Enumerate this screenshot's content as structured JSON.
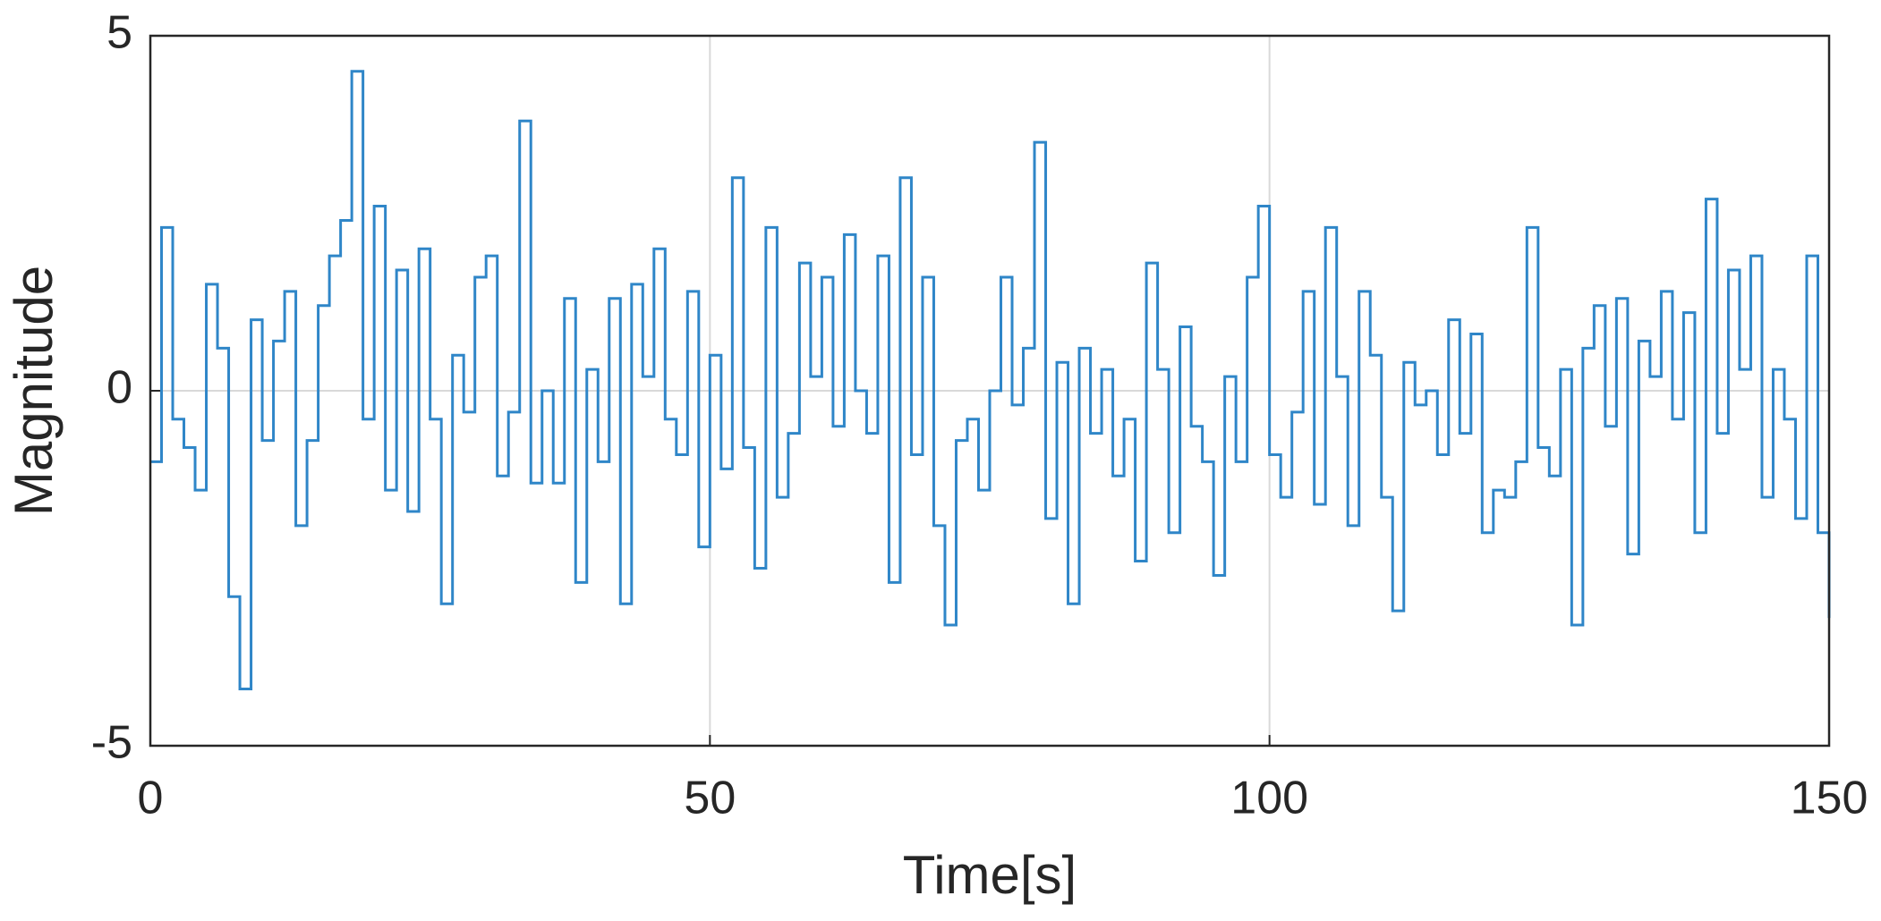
{
  "chart_data": {
    "type": "line",
    "drawstyle": "steps-post",
    "xlabel": "Time[s]",
    "ylabel": "Magnitude",
    "xlim": [
      0,
      150
    ],
    "xticks": [
      0,
      50,
      100,
      150
    ],
    "ylim": [
      -5,
      5
    ],
    "yticks": [
      -5,
      0,
      5
    ],
    "grid": true,
    "series": [
      {
        "color": "#2f86c8",
        "x": [
          0,
          1,
          2,
          3,
          4,
          5,
          6,
          7,
          8,
          9,
          10,
          11,
          12,
          13,
          14,
          15,
          16,
          17,
          18,
          19,
          20,
          21,
          22,
          23,
          24,
          25,
          26,
          27,
          28,
          29,
          30,
          31,
          32,
          33,
          34,
          35,
          36,
          37,
          38,
          39,
          40,
          41,
          42,
          43,
          44,
          45,
          46,
          47,
          48,
          49,
          50,
          51,
          52,
          53,
          54,
          55,
          56,
          57,
          58,
          59,
          60,
          61,
          62,
          63,
          64,
          65,
          66,
          67,
          68,
          69,
          70,
          71,
          72,
          73,
          74,
          75,
          76,
          77,
          78,
          79,
          80,
          81,
          82,
          83,
          84,
          85,
          86,
          87,
          88,
          89,
          90,
          91,
          92,
          93,
          94,
          95,
          96,
          97,
          98,
          99,
          100,
          101,
          102,
          103,
          104,
          105,
          106,
          107,
          108,
          109,
          110,
          111,
          112,
          113,
          114,
          115,
          116,
          117,
          118,
          119,
          120,
          121,
          122,
          123,
          124,
          125,
          126,
          127,
          128,
          129,
          130,
          131,
          132,
          133,
          134,
          135,
          136,
          137,
          138,
          139,
          140,
          141,
          142,
          143,
          144,
          145,
          146,
          147,
          148,
          149,
          150
        ],
        "values": [
          -1.0,
          2.3,
          -0.4,
          -0.8,
          -1.4,
          1.5,
          0.6,
          -2.9,
          -4.2,
          1.0,
          -0.7,
          0.7,
          1.4,
          -1.9,
          -0.7,
          1.2,
          1.9,
          2.4,
          4.5,
          -0.4,
          2.6,
          -1.4,
          1.7,
          -1.7,
          2.0,
          -0.4,
          -3.0,
          0.5,
          -0.3,
          1.6,
          1.9,
          -1.2,
          -0.3,
          3.8,
          -1.3,
          0.0,
          -1.3,
          1.3,
          -2.7,
          0.3,
          -1.0,
          1.3,
          -3.0,
          1.5,
          0.2,
          2.0,
          -0.4,
          -0.9,
          1.4,
          -2.2,
          0.5,
          -1.1,
          3.0,
          -0.8,
          -2.5,
          2.3,
          -1.5,
          -0.6,
          1.8,
          0.2,
          1.6,
          -0.5,
          2.2,
          0.0,
          -0.6,
          1.9,
          -2.7,
          3.0,
          -0.9,
          1.6,
          -1.9,
          -3.3,
          -0.7,
          -0.4,
          -1.4,
          0.0,
          1.6,
          -0.2,
          0.6,
          3.5,
          -1.8,
          0.4,
          -3.0,
          0.6,
          -0.6,
          0.3,
          -1.2,
          -0.4,
          -2.4,
          1.8,
          0.3,
          -2.0,
          0.9,
          -0.5,
          -1.0,
          -2.6,
          0.2,
          -1.0,
          1.6,
          2.6,
          -0.9,
          -1.5,
          -0.3,
          1.4,
          -1.6,
          2.3,
          0.2,
          -1.9,
          1.4,
          0.5,
          -1.5,
          -3.1,
          0.4,
          -0.2,
          0.0,
          -0.9,
          1.0,
          -0.6,
          0.8,
          -2.0,
          -1.4,
          -1.5,
          -1.0,
          2.3,
          -0.8,
          -1.2,
          0.3,
          -3.3,
          0.6,
          1.2,
          -0.5,
          1.3,
          -2.3,
          0.7,
          0.2,
          1.4,
          -0.4,
          1.1,
          -2.0,
          2.7,
          -0.6,
          1.7,
          0.3,
          1.9,
          -1.5,
          0.3,
          -0.4,
          -1.8,
          1.9,
          -2.0,
          -3.2
        ]
      }
    ]
  }
}
